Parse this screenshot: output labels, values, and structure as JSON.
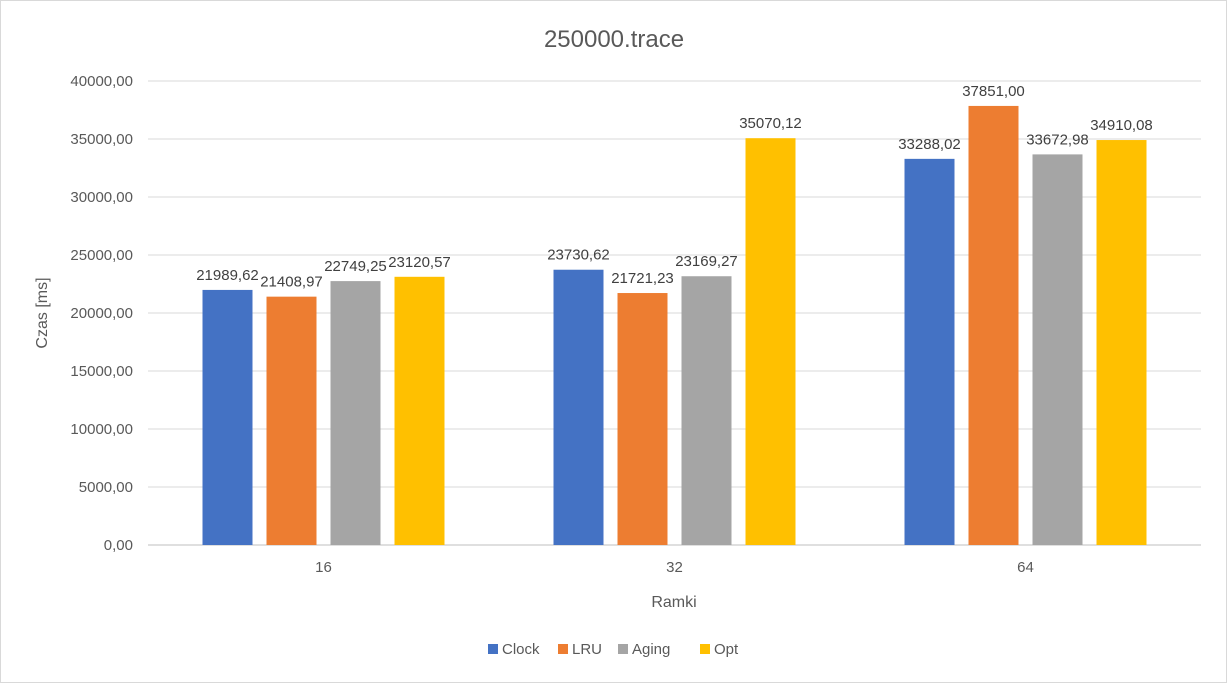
{
  "chart_data": {
    "type": "bar",
    "title": "250000.trace",
    "xlabel": "Ramki",
    "ylabel": "Czas [ms]",
    "categories": [
      "16",
      "32",
      "64"
    ],
    "ylim": [
      0,
      40000
    ],
    "yticks": [
      0,
      5000,
      10000,
      15000,
      20000,
      25000,
      30000,
      35000,
      40000
    ],
    "ytick_labels": [
      "0,00",
      "5000,00",
      "10000,00",
      "15000,00",
      "20000,00",
      "25000,00",
      "30000,00",
      "35000,00",
      "40000,00"
    ],
    "grid": true,
    "legend_position": "bottom",
    "series": [
      {
        "name": "Clock",
        "color": "#4472C4",
        "values": [
          21989.62,
          23730.62,
          33288.02
        ],
        "labels": [
          "21989,62",
          "23730,62",
          "33288,02"
        ]
      },
      {
        "name": "LRU",
        "color": "#ED7D31",
        "values": [
          21408.97,
          21721.23,
          37851.0
        ],
        "labels": [
          "21408,97",
          "21721,23",
          "37851,00"
        ]
      },
      {
        "name": "Aging",
        "color": "#A5A5A5",
        "values": [
          22749.25,
          23169.27,
          33672.98
        ],
        "labels": [
          "22749,25",
          "23169,27",
          "33672,98"
        ]
      },
      {
        "name": "Opt",
        "color": "#FFC000",
        "values": [
          23120.57,
          35070.12,
          34910.08
        ],
        "labels": [
          "23120,57",
          "35070,12",
          "34910,08"
        ]
      }
    ]
  }
}
